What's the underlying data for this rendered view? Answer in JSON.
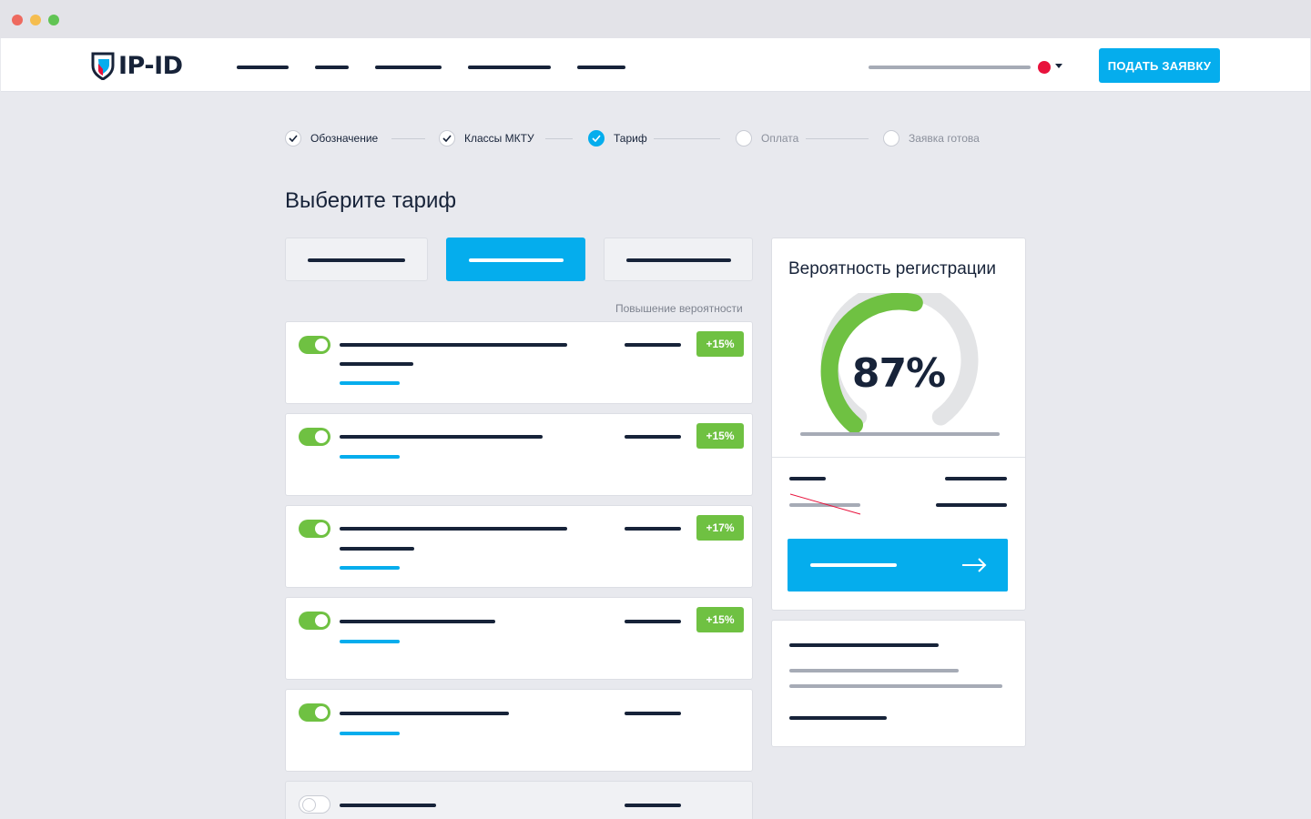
{
  "window": {
    "controls": [
      "close",
      "minimize",
      "maximize"
    ]
  },
  "header": {
    "logo_text": "IP-ID",
    "apply_button": "ПОДАТЬ ЗАЯВКУ",
    "colors": {
      "brand_blue": "#05aded",
      "dark": "#172339",
      "language_flag": "#e8123c"
    }
  },
  "stepper": [
    {
      "label": "Обозначение",
      "state": "done"
    },
    {
      "label": "Классы МКТУ",
      "state": "done"
    },
    {
      "label": "Тариф",
      "state": "active"
    },
    {
      "label": "Оплата",
      "state": "pending"
    },
    {
      "label": "Заявка готова",
      "state": "pending"
    }
  ],
  "page_title": "Выберите тариф",
  "tariffs": {
    "selected_index": 1,
    "count": 3
  },
  "options": {
    "column_header": "Повышение вероятности",
    "items": [
      {
        "enabled": true,
        "badge": "+15%"
      },
      {
        "enabled": true,
        "badge": "+15%"
      },
      {
        "enabled": true,
        "badge": "+17%"
      },
      {
        "enabled": true,
        "badge": "+15%"
      },
      {
        "enabled": true,
        "badge": ""
      },
      {
        "enabled": false,
        "badge": ""
      }
    ],
    "colors": {
      "toggle_on": "#6fc142",
      "badge": "#6fc142"
    }
  },
  "probability": {
    "title": "Вероятность регистрации",
    "value_percent": 87,
    "value_text": "87%",
    "colors": {
      "fill": "#6fc142",
      "track": "#e3e4e6"
    }
  },
  "icons": {
    "next_button": "arrow-right-icon",
    "done_step": "checkmark-icon",
    "language_menu": "chevron-down-icon"
  }
}
